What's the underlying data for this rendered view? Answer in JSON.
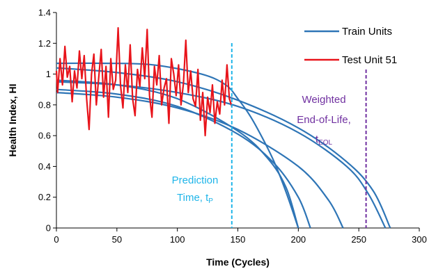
{
  "chart_data": {
    "type": "line",
    "title": "",
    "xlabel": "Time (Cycles)",
    "ylabel": "Health Index, HI",
    "xlim": [
      0,
      300
    ],
    "ylim": [
      0,
      1.4
    ],
    "xticks": [
      "0",
      "50",
      "100",
      "150",
      "200",
      "250",
      "300"
    ],
    "yticks": [
      "0",
      "0.2",
      "0.4",
      "0.6",
      "0.8",
      "1",
      "1.2",
      "1.4"
    ],
    "grid": false,
    "legend_position": "top-right",
    "legend": [
      {
        "label": "Train Units",
        "color": "#2E75B6"
      },
      {
        "label": "Test Unit 51",
        "color": "#E8141B"
      }
    ],
    "train_units": [
      {
        "x": [
          0,
          50,
          100,
          150,
          175,
          190,
          200
        ],
        "y": [
          0.96,
          0.93,
          0.84,
          0.63,
          0.45,
          0.26,
          0
        ]
      },
      {
        "x": [
          0,
          50,
          100,
          150,
          180,
          200,
          210
        ],
        "y": [
          0.9,
          0.87,
          0.79,
          0.61,
          0.42,
          0.2,
          0
        ]
      },
      {
        "x": [
          0,
          50,
          100,
          150,
          200,
          225,
          237
        ],
        "y": [
          0.88,
          0.85,
          0.78,
          0.64,
          0.4,
          0.18,
          0
        ]
      },
      {
        "x": [
          0,
          50,
          100,
          150,
          200,
          240,
          258,
          272
        ],
        "y": [
          0.95,
          0.93,
          0.88,
          0.79,
          0.62,
          0.4,
          0.22,
          0
        ]
      },
      {
        "x": [
          0,
          50,
          100,
          150,
          200,
          240,
          262,
          276
        ],
        "y": [
          1.04,
          1.01,
          0.95,
          0.83,
          0.65,
          0.43,
          0.24,
          0
        ]
      },
      {
        "x": [
          0,
          40,
          80,
          120,
          140,
          150,
          160,
          170,
          180,
          190,
          200
        ],
        "y": [
          1.07,
          1.07,
          1.06,
          1.0,
          0.93,
          0.84,
          0.73,
          0.59,
          0.43,
          0.23,
          0
        ]
      }
    ],
    "test_unit": {
      "x": [
        0,
        1,
        3,
        5,
        7,
        9,
        11,
        13,
        15,
        17,
        19,
        21,
        23,
        25,
        27,
        29,
        31,
        33,
        35,
        37,
        39,
        41,
        43,
        45,
        47,
        49,
        51,
        53,
        55,
        57,
        59,
        61,
        63,
        65,
        67,
        69,
        71,
        73,
        75,
        77,
        79,
        81,
        83,
        85,
        87,
        89,
        91,
        93,
        95,
        97,
        99,
        101,
        103,
        105,
        107,
        109,
        111,
        113,
        115,
        117,
        119,
        121,
        123,
        125,
        127,
        129,
        131,
        133,
        135,
        137,
        139,
        141,
        143,
        145
      ],
      "y": [
        1.02,
        0.88,
        1.1,
        0.93,
        1.18,
        0.98,
        1.05,
        0.82,
        1.02,
        0.91,
        1.15,
        0.97,
        1.12,
        0.84,
        0.64,
        1.0,
        1.13,
        0.8,
        0.98,
        1.16,
        0.85,
        1.05,
        0.72,
        1.1,
        0.9,
        0.96,
        1.3,
        0.93,
        0.78,
        1.06,
        0.88,
        1.19,
        0.84,
        0.73,
        1.03,
        0.92,
        1.17,
        0.97,
        1.29,
        0.86,
        0.72,
        1.05,
        0.93,
        1.12,
        0.8,
        0.91,
        0.97,
        0.68,
        1.1,
        1.0,
        0.86,
        1.06,
        0.8,
        0.94,
        1.22,
        0.88,
        1.02,
        0.84,
        0.79,
        1.03,
        0.7,
        0.88,
        0.6,
        0.85,
        0.75,
        0.93,
        0.68,
        0.82,
        0.74,
        0.96,
        0.8,
        1.06,
        0.84,
        0.79
      ]
    },
    "annotations": {
      "prediction_time": {
        "x": 145,
        "color": "#1FB5E9",
        "lines": [
          "Prediction",
          "Time, t"
        ],
        "subscript": "P"
      },
      "weighted_eol": {
        "x": 256,
        "color": "#7030A0",
        "lines": [
          "Weighted",
          "End-of-Life,"
        ],
        "t_label": "t",
        "subscript": "EOL"
      }
    }
  }
}
